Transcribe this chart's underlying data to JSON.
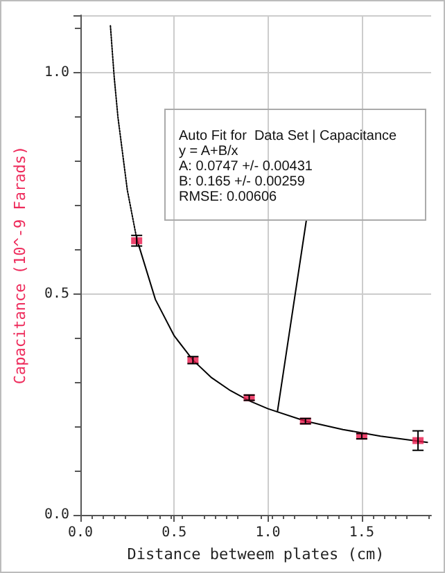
{
  "chart_data": {
    "type": "scatter",
    "xlabel": "Distance betweem plates (cm)",
    "ylabel": "Capacitance (10^-9 Farads)",
    "xlim": [
      0,
      1.87
    ],
    "xticks": [
      {
        "value": 0,
        "label": "0.0"
      },
      {
        "value": 0.5,
        "label": "0.5"
      },
      {
        "value": 1,
        "label": "1.0"
      },
      {
        "value": 1.5,
        "label": "1.5"
      }
    ],
    "ylim": [
      0,
      1.13
    ],
    "yticks": [
      {
        "value": 0,
        "label": "0.0"
      },
      {
        "value": 0.5,
        "label": "0.5"
      },
      {
        "value": 1,
        "label": "1.0"
      }
    ],
    "grid": true,
    "series": [
      {
        "type": "line",
        "color": "#000000",
        "line_style": "dotted",
        "marker": "none",
        "x": [
          0.16,
          0.18,
          0.2,
          0.25,
          0.3
        ],
        "values": [
          1.106,
          0.991,
          0.9,
          0.735,
          0.625
        ]
      },
      {
        "type": "line",
        "color": "#000000",
        "line_style": "solid",
        "marker": "none",
        "x": [
          0.3,
          0.4,
          0.5,
          0.6,
          0.7,
          0.8,
          0.9,
          1.0,
          1.2,
          1.4,
          1.6,
          1.85
        ],
        "values": [
          0.625,
          0.487,
          0.405,
          0.35,
          0.31,
          0.281,
          0.258,
          0.24,
          0.212,
          0.193,
          0.178,
          0.164
        ]
      },
      {
        "color": "#e8174a",
        "marker": "square",
        "x": [
          0.3,
          0.6,
          0.9,
          1.2,
          1.5,
          1.8
        ],
        "values": [
          0.62,
          0.35,
          0.265,
          0.212,
          0.178,
          0.168
        ],
        "errors": [
          0.012,
          0.008,
          0.006,
          0.006,
          0.006,
          0.022
        ]
      }
    ],
    "annotations": [
      {
        "text": "Auto Fit for  Data Set | Capacitance\ny = A+B/x\nA: 0.0747 +/- 0.00431\nB: 0.165 +/- 0.00259\nRMSE: 0.00606",
        "x": 1.05,
        "y": 0.232
      }
    ]
  }
}
